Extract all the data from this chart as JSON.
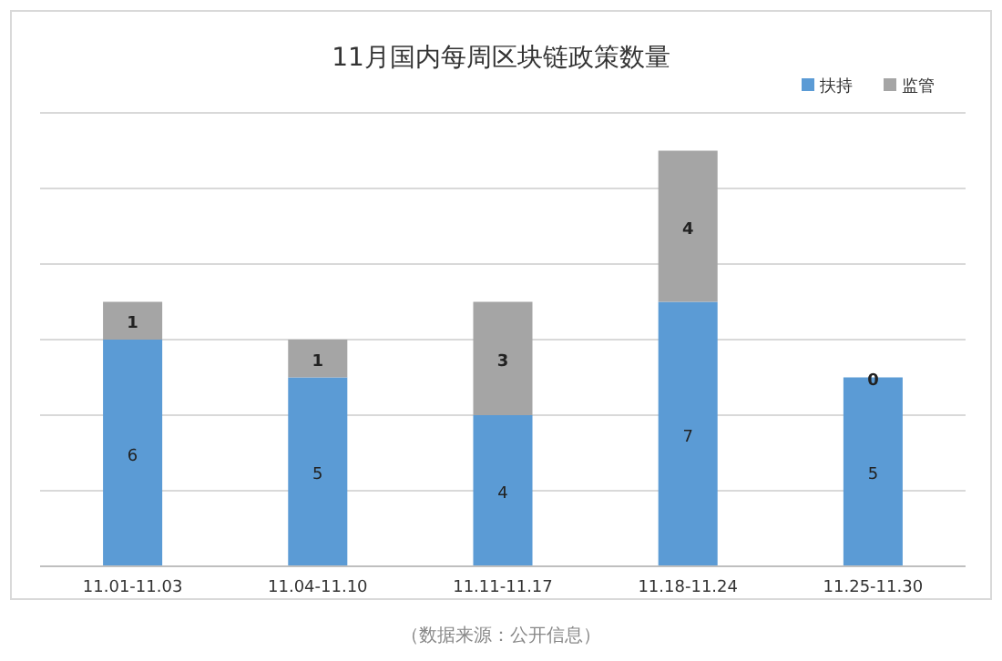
{
  "chart_data": {
    "type": "bar",
    "title": "11月国内每周区块链政策数量",
    "categories": [
      "11.01-11.03",
      "11.04-11.10",
      "11.11-11.17",
      "11.18-11.24",
      "11.25-11.30"
    ],
    "series": [
      {
        "name": "扶持",
        "color": "#5b9bd5",
        "values": [
          6,
          5,
          4,
          7,
          5
        ]
      },
      {
        "name": "监管",
        "color": "#a5a5a5",
        "values": [
          1,
          1,
          3,
          4,
          0
        ]
      }
    ],
    "stacked": true,
    "data_labels": true,
    "ylim": [
      0,
      12
    ],
    "yticks": [
      {
        "value": 0,
        "label": null
      },
      {
        "value": 2,
        "label": null
      },
      {
        "value": 4,
        "label": null
      },
      {
        "value": 6,
        "label": null
      },
      {
        "value": 8,
        "label": null
      },
      {
        "value": 10,
        "label": null
      },
      {
        "value": 12,
        "label": null
      }
    ],
    "grid": "y",
    "legend": "top right",
    "tick_labels": "x",
    "annotations": [
      "（数据来源：公开信息）"
    ]
  }
}
